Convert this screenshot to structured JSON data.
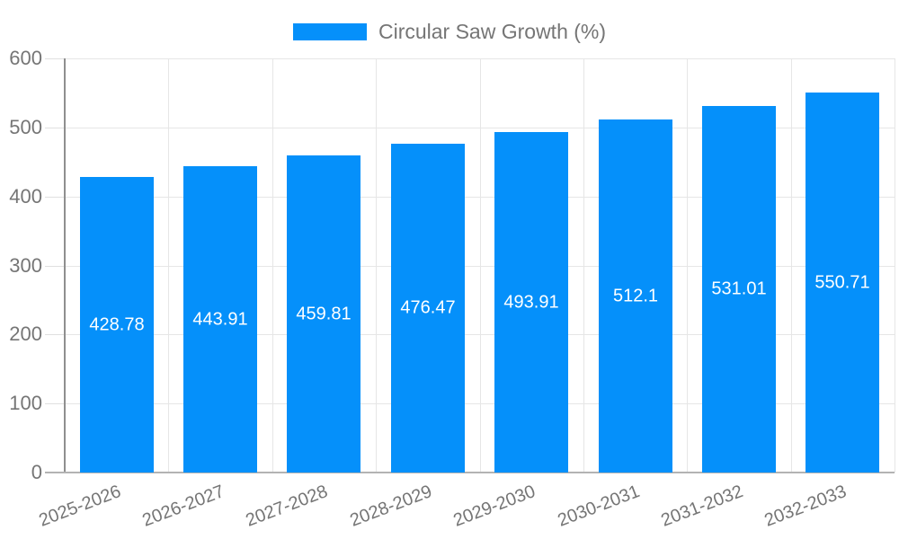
{
  "chart_data": {
    "type": "bar",
    "title": "Circular Saw Growth (%)",
    "legend_position": "top",
    "categories": [
      "2025-2026",
      "2026-2027",
      "2027-2028",
      "2028-2029",
      "2029-2030",
      "2030-2031",
      "2031-2032",
      "2032-2033"
    ],
    "series": [
      {
        "name": "Circular Saw Growth (%)",
        "values": [
          428.78,
          443.91,
          459.81,
          476.47,
          493.91,
          512.1,
          531.01,
          550.71
        ],
        "value_labels": [
          "428.78",
          "443.91",
          "459.81",
          "476.47",
          "493.91",
          "512.1",
          "531.01",
          "550.71"
        ]
      }
    ],
    "xlabel": "",
    "ylabel": "",
    "ylim": [
      0,
      600
    ],
    "yticks": [
      0,
      100,
      200,
      300,
      400,
      500,
      600
    ],
    "grid": "on"
  },
  "colors": {
    "bar": "#0590fa",
    "axis_text": "#757575",
    "value_text": "#ffffff",
    "gridline": "#e6e6e6",
    "axis_line_y": "#8f8f8f",
    "axis_line_x": "#b3b3b3",
    "background": "#ffffff"
  }
}
